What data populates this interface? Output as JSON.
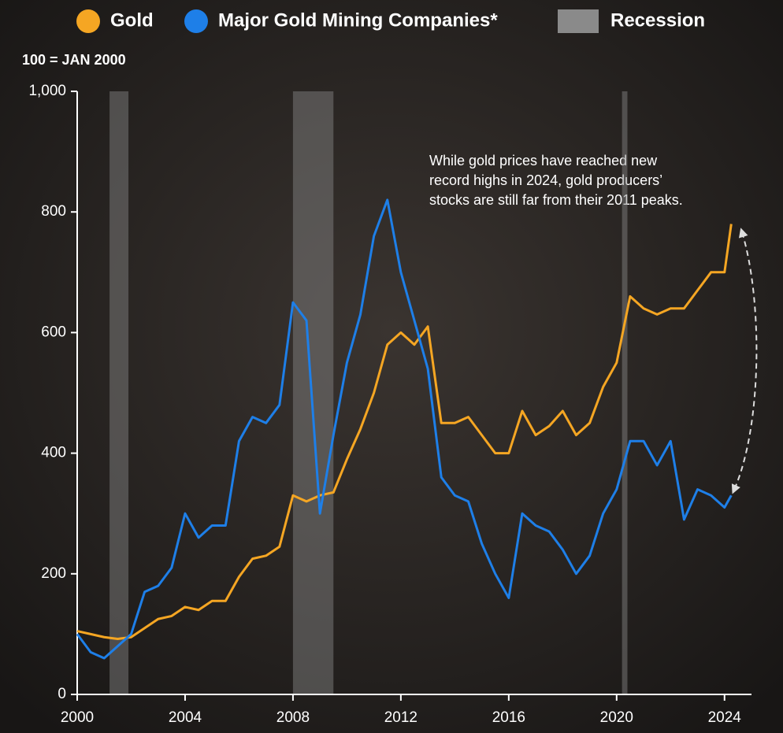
{
  "chart_data": {
    "type": "line",
    "y_label": "100 = JAN 2000",
    "annotation": [
      "While gold prices have reached new",
      "record highs in 2024, gold producers’",
      "stocks are still far from their 2011 peaks."
    ],
    "xlim": [
      2000,
      2025
    ],
    "xticks": [
      2000,
      2004,
      2008,
      2012,
      2016,
      2020,
      2024
    ],
    "ylim": [
      0,
      1000
    ],
    "yticks": [
      0,
      200,
      400,
      600,
      800,
      {
        "value": 1000,
        "label": "1,000"
      }
    ],
    "recession": {
      "name": "Recession",
      "color": "#8a8a8a",
      "periods": [
        [
          2001.2,
          2001.9
        ],
        [
          2008.0,
          2009.5
        ],
        [
          2020.2,
          2020.4
        ]
      ]
    },
    "x": [
      2000,
      2000.5,
      2001,
      2001.5,
      2002,
      2002.5,
      2003,
      2003.5,
      2004,
      2004.5,
      2005,
      2005.5,
      2006,
      2006.5,
      2007,
      2007.5,
      2008,
      2008.5,
      2009,
      2009.5,
      2010,
      2010.5,
      2011,
      2011.5,
      2012,
      2012.5,
      2013,
      2013.5,
      2014,
      2014.5,
      2015,
      2015.5,
      2016,
      2016.5,
      2017,
      2017.5,
      2018,
      2018.5,
      2019,
      2019.5,
      2020,
      2020.5,
      2021,
      2021.5,
      2022,
      2022.5,
      2023,
      2023.5,
      2024,
      2024.25
    ],
    "series": [
      {
        "name": "Gold",
        "color": "#f5a623",
        "values": [
          105,
          100,
          95,
          92,
          95,
          110,
          125,
          130,
          145,
          140,
          155,
          155,
          195,
          225,
          230,
          245,
          330,
          320,
          330,
          335,
          390,
          440,
          500,
          580,
          600,
          580,
          610,
          450,
          450,
          460,
          430,
          400,
          400,
          470,
          430,
          445,
          470,
          430,
          450,
          510,
          550,
          660,
          640,
          630,
          640,
          640,
          670,
          700,
          700,
          780
        ]
      },
      {
        "name": "Major Gold Mining Companies*",
        "color": "#1e7fe8",
        "values": [
          100,
          70,
          60,
          80,
          100,
          170,
          180,
          210,
          300,
          260,
          280,
          280,
          420,
          460,
          450,
          480,
          650,
          620,
          300,
          430,
          550,
          630,
          760,
          820,
          700,
          620,
          540,
          360,
          330,
          320,
          250,
          200,
          160,
          300,
          280,
          270,
          240,
          200,
          230,
          300,
          340,
          420,
          420,
          380,
          420,
          290,
          340,
          330,
          310,
          330
        ]
      }
    ]
  }
}
